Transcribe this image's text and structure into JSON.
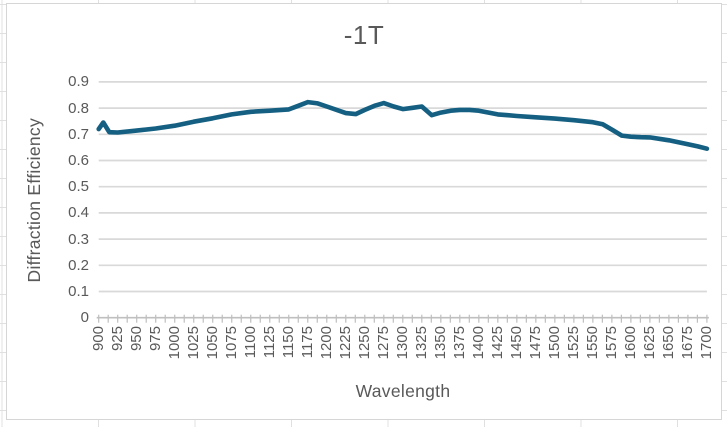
{
  "chart": {
    "title": "-1T",
    "y_axis": {
      "label": "Diffraction Efficiency",
      "tick_labels": [
        "0",
        "0.1",
        "0.2",
        "0.3",
        "0.4",
        "0.5",
        "0.6",
        "0.7",
        "0.8",
        "0.9"
      ]
    },
    "x_axis": {
      "label": "Wavelength",
      "tick_labels": [
        "900",
        "925",
        "950",
        "975",
        "1000",
        "1025",
        "1050",
        "1075",
        "1100",
        "1125",
        "1150",
        "1175",
        "1200",
        "1225",
        "1250",
        "1275",
        "1300",
        "1325",
        "1350",
        "1375",
        "1400",
        "1425",
        "1450",
        "1475",
        "1500",
        "1525",
        "1550",
        "1575",
        "1600",
        "1625",
        "1650",
        "1675",
        "1700"
      ]
    },
    "colors": {
      "series": "#156082",
      "gridline": "#d9d9d9",
      "axis": "#bfbfbf",
      "text": "#595959"
    }
  },
  "chart_data": {
    "type": "line",
    "title": "-1T",
    "xlabel": "Wavelength",
    "ylabel": "Diffraction Efficiency",
    "xlim": [
      900,
      1700
    ],
    "ylim": [
      0,
      0.9
    ],
    "x_label_step": 25,
    "x_minor_tick_step": 12.5,
    "y_step": 0.1,
    "grid": true,
    "legend": false,
    "series": [
      {
        "name": "-1T",
        "color": "#156082",
        "x": [
          900,
          906,
          914,
          925,
          950,
          975,
          1000,
          1025,
          1050,
          1075,
          1100,
          1125,
          1150,
          1163,
          1175,
          1188,
          1200,
          1213,
          1225,
          1238,
          1250,
          1263,
          1275,
          1288,
          1300,
          1313,
          1325,
          1338,
          1350,
          1363,
          1375,
          1388,
          1400,
          1413,
          1425,
          1438,
          1450,
          1475,
          1500,
          1525,
          1550,
          1563,
          1575,
          1588,
          1600,
          1613,
          1625,
          1650,
          1675,
          1688,
          1700
        ],
        "y": [
          0.72,
          0.745,
          0.708,
          0.707,
          0.714,
          0.722,
          0.733,
          0.748,
          0.761,
          0.776,
          0.786,
          0.79,
          0.795,
          0.809,
          0.823,
          0.818,
          0.806,
          0.793,
          0.781,
          0.777,
          0.793,
          0.809,
          0.819,
          0.806,
          0.796,
          0.801,
          0.806,
          0.773,
          0.783,
          0.79,
          0.793,
          0.793,
          0.79,
          0.783,
          0.776,
          0.773,
          0.77,
          0.765,
          0.76,
          0.754,
          0.746,
          0.738,
          0.718,
          0.695,
          0.691,
          0.689,
          0.688,
          0.677,
          0.662,
          0.654,
          0.645
        ]
      }
    ]
  }
}
